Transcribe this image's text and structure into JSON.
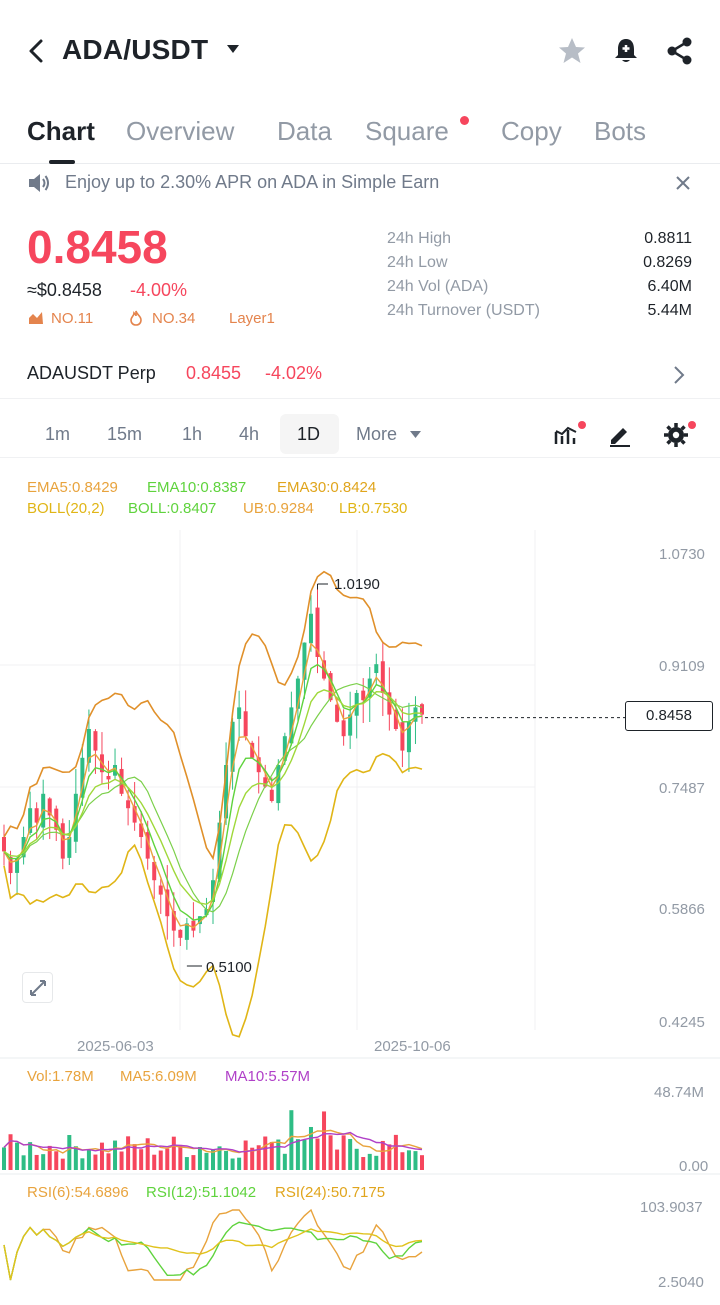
{
  "header": {
    "title": "ADA/USDT"
  },
  "tabs": [
    {
      "label": "Chart",
      "active": true
    },
    {
      "label": "Overview"
    },
    {
      "label": "Data"
    },
    {
      "label": "Square"
    },
    {
      "label": "Copy"
    },
    {
      "label": "Bots"
    }
  ],
  "banner": {
    "text": "Enjoy up to 2.30% APR on ADA in Simple Earn"
  },
  "price": {
    "last": "0.8458",
    "usd": "≈$0.8458",
    "change": "-4.00%",
    "badges": [
      "NO.11",
      "NO.34",
      "Layer1"
    ]
  },
  "stats": [
    {
      "label": "24h High",
      "value": "0.8811"
    },
    {
      "label": "24h Low",
      "value": "0.8269"
    },
    {
      "label": "24h Vol (ADA)",
      "value": "6.40M"
    },
    {
      "label": "24h Turnover (USDT)",
      "value": "5.44M"
    }
  ],
  "perp": {
    "name": "ADAUSDT Perp",
    "price": "0.8455",
    "change": "-4.02%"
  },
  "intervals": [
    {
      "label": "1m"
    },
    {
      "label": "15m"
    },
    {
      "label": "1h"
    },
    {
      "label": "4h"
    },
    {
      "label": "1D",
      "active": true
    },
    {
      "label": "More"
    }
  ],
  "indicators": {
    "ema5": "EMA5:0.8429",
    "ema10": "EMA10:0.8387",
    "ema30": "EMA30:0.8424",
    "boll": "BOLL(20,2)",
    "boll_mid": "BOLL:0.8407",
    "ub": "UB:0.9284",
    "lb": "LB:0.7530",
    "vol": "Vol:1.78M",
    "ma5": "MA5:6.09M",
    "ma10": "MA10:5.57M",
    "rsi6": "RSI(6):54.6896",
    "rsi12": "RSI(12):51.1042",
    "rsi24": "RSI(24):50.7175"
  },
  "colors": {
    "up": "#2ebd85",
    "down": "#f6465d",
    "ema5": "#e8a33d",
    "ema10": "#5fd33d",
    "ema30": "#e0a51d",
    "boll": "#e0b516",
    "vol": "#e8a33d",
    "ma10": "#b040c8"
  },
  "chart_data": {
    "type": "candlestick",
    "y_ticks": [
      "1.0730",
      "0.9109",
      "0.7487",
      "0.5866",
      "0.4245"
    ],
    "ylim": [
      0.4245,
      1.073
    ],
    "x_ticks": [
      "2025-06-03",
      "2025-10-06"
    ],
    "high_marker": "1.0190",
    "low_marker": "0.5100",
    "current_price": "0.8458",
    "closes": [
      0.66,
      0.63,
      0.65,
      0.68,
      0.72,
      0.7,
      0.74,
      0.71,
      0.69,
      0.65,
      0.68,
      0.74,
      0.79,
      0.83,
      0.8,
      0.77,
      0.76,
      0.78,
      0.74,
      0.72,
      0.7,
      0.68,
      0.65,
      0.62,
      0.6,
      0.57,
      0.55,
      0.54,
      0.56,
      0.55,
      0.57,
      0.58,
      0.62,
      0.7,
      0.78,
      0.84,
      0.86,
      0.82,
      0.79,
      0.77,
      0.75,
      0.73,
      0.78,
      0.82,
      0.86,
      0.9,
      0.95,
      0.99,
      0.93,
      0.9,
      0.87,
      0.84,
      0.82,
      0.85,
      0.88,
      0.87,
      0.9,
      0.92,
      0.88,
      0.85,
      0.83,
      0.8,
      0.84,
      0.86,
      0.85
    ],
    "volume": {
      "max_label": "48.74M",
      "min_label": "0.00"
    },
    "rsi": {
      "max_label": "103.9037",
      "min_label": "2.5040"
    }
  }
}
